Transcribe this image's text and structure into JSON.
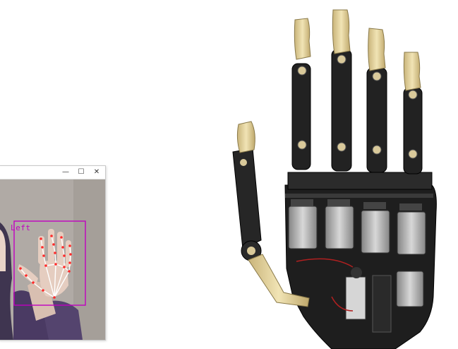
{
  "camera_window": {
    "minimize_icon": "minimize-icon",
    "maximize_icon": "maximize-icon",
    "close_icon": "close-icon",
    "minimize_glyph": "—",
    "maximize_glyph": "☐",
    "close_glyph": "✕",
    "detection_label": "Left",
    "overlay_color": "#c000c0",
    "landmark_color": "#ff2a2a",
    "skeleton_color": "#ffffff"
  },
  "model_viewport": {
    "subject": "robotic-hand-model",
    "frame_color": "#1a1a1a",
    "joint_color": "#d9c99a",
    "servo_color": "#d0d0d0"
  }
}
